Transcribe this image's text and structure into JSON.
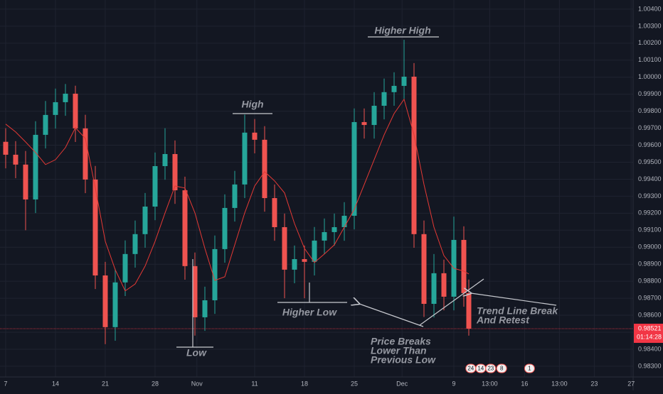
{
  "chart_data": {
    "type": "candlestick",
    "candles": {
      "x": [
        0,
        1,
        2,
        3,
        4,
        5,
        6,
        7,
        8,
        9,
        10,
        11,
        12,
        13,
        14,
        15,
        16,
        17,
        18,
        19,
        20,
        21,
        22,
        23,
        24,
        25,
        26,
        27,
        28,
        29,
        30,
        31,
        32,
        33,
        34,
        35,
        36,
        37,
        38,
        39,
        40,
        41,
        42,
        43,
        44,
        45,
        46,
        46.5
      ],
      "open": [
        0.9962,
        0.99544,
        0.99486,
        0.99281,
        0.99661,
        0.99778,
        0.99853,
        0.99903,
        0.99699,
        0.99398,
        0.98834,
        0.9853,
        0.98793,
        0.9896,
        0.99077,
        0.99239,
        0.99477,
        0.99548,
        0.99335,
        0.98889,
        0.98588,
        0.98688,
        0.98989,
        0.99231,
        0.99369,
        0.99674,
        0.99632,
        0.99289,
        0.99118,
        0.98868,
        0.9893,
        0.98914,
        0.99039,
        0.99089,
        0.99118,
        0.99185,
        0.99736,
        0.99719,
        0.99832,
        0.99912,
        0.99949,
        1.00003,
        0.99077,
        0.98667,
        0.98847,
        0.98709,
        0.99043,
        0.9873
      ],
      "high": [
        0.997,
        0.99624,
        0.99566,
        0.99741,
        0.9986,
        0.99933,
        0.9996,
        0.9995,
        0.99779,
        0.99478,
        0.98914,
        0.98873,
        0.9904,
        0.99157,
        0.99319,
        0.99557,
        0.997,
        0.99628,
        0.99415,
        0.98969,
        0.98768,
        0.99069,
        0.99311,
        0.99449,
        0.9978,
        0.99754,
        0.99712,
        0.99369,
        0.99198,
        0.9901,
        0.9901,
        0.99119,
        0.99169,
        0.99198,
        0.99265,
        0.99816,
        0.99816,
        0.99912,
        0.99992,
        1.00029,
        1.0022,
        1.00083,
        0.99157,
        0.9896,
        0.98927,
        0.9918,
        0.99123,
        0.9881
      ],
      "low": [
        0.99464,
        0.99406,
        0.991,
        0.99201,
        0.99581,
        0.99698,
        0.99773,
        0.99619,
        0.99318,
        0.98754,
        0.9843,
        0.9845,
        0.98713,
        0.9888,
        0.98997,
        0.99159,
        0.99397,
        0.99255,
        0.98809,
        0.9848,
        0.98508,
        0.98608,
        0.98909,
        0.99151,
        0.99289,
        0.99552,
        0.99209,
        0.99038,
        0.987,
        0.98788,
        0.987,
        0.98834,
        0.98959,
        0.99009,
        0.99038,
        0.99105,
        0.99639,
        0.99639,
        0.99752,
        0.99832,
        0.99869,
        0.98997,
        0.9859,
        0.98587,
        0.98629,
        0.98629,
        0.9865,
        0.9848
      ],
      "close": [
        0.99544,
        0.99486,
        0.99281,
        0.99661,
        0.99778,
        0.99853,
        0.99903,
        0.99699,
        0.99398,
        0.98834,
        0.9853,
        0.98793,
        0.9896,
        0.99077,
        0.99239,
        0.99477,
        0.99548,
        0.99335,
        0.98889,
        0.98588,
        0.98688,
        0.98989,
        0.99231,
        0.99369,
        0.99674,
        0.99632,
        0.99289,
        0.99118,
        0.98868,
        0.9893,
        0.98914,
        0.99039,
        0.99089,
        0.99118,
        0.99185,
        0.99736,
        0.99719,
        0.99832,
        0.99912,
        0.99949,
        1.00003,
        0.99077,
        0.98667,
        0.98847,
        0.98709,
        0.99043,
        0.9873,
        0.98521
      ],
      "up_color": "#26a69a",
      "down_color": "#ef5350"
    },
    "moving_average": {
      "color": "#e53935",
      "values": [
        0.99724,
        0.99678,
        0.99619,
        0.99557,
        0.99486,
        0.99515,
        0.99586,
        0.99703,
        0.9964,
        0.99348,
        0.99035,
        0.98868,
        0.98743,
        0.98784,
        0.98889,
        0.99035,
        0.99202,
        0.9936,
        0.99348,
        0.99202,
        0.98993,
        0.98805,
        0.98826,
        0.99014,
        0.99202,
        0.9936,
        0.99444,
        0.9939,
        0.99319,
        0.99139,
        0.98993,
        0.9891,
        0.9896,
        0.99014,
        0.99118,
        0.99223,
        0.99369,
        0.99515,
        0.99661,
        0.99786,
        0.9987,
        0.99661,
        0.99369,
        0.99118,
        0.98951,
        0.98876,
        0.98859,
        0.98843
      ]
    },
    "xlim": [
      -0.57,
      63
    ],
    "ylim": [
      0.98237,
      1.00454
    ],
    "xticks": [
      {
        "value": 0,
        "label": "7"
      },
      {
        "value": 5,
        "label": "14"
      },
      {
        "value": 10,
        "label": "21"
      },
      {
        "value": 15,
        "label": "28"
      },
      {
        "value": 19.2,
        "label": "Nov"
      },
      {
        "value": 25,
        "label": "11"
      },
      {
        "value": 30,
        "label": "18"
      },
      {
        "value": 35,
        "label": "25"
      },
      {
        "value": 39.8,
        "label": "Dec"
      },
      {
        "value": 45,
        "label": "9"
      },
      {
        "value": 48.6,
        "label": "13:00"
      },
      {
        "value": 52.1,
        "label": "16"
      },
      {
        "value": 55.6,
        "label": "13:00"
      },
      {
        "value": 59.1,
        "label": "23"
      },
      {
        "value": 62.8,
        "label": "27"
      }
    ],
    "yticks": [
      {
        "value": 0.983,
        "label": "0.98300"
      },
      {
        "value": 0.984,
        "label": "0.98400"
      },
      {
        "value": 0.985,
        "label": "0.98500"
      },
      {
        "value": 0.986,
        "label": "0.98600"
      },
      {
        "value": 0.987,
        "label": "0.98700"
      },
      {
        "value": 0.988,
        "label": "0.98800"
      },
      {
        "value": 0.989,
        "label": "0.98900"
      },
      {
        "value": 0.99,
        "label": "0.99000"
      },
      {
        "value": 0.991,
        "label": "0.99100"
      },
      {
        "value": 0.992,
        "label": "0.99200"
      },
      {
        "value": 0.993,
        "label": "0.99300"
      },
      {
        "value": 0.994,
        "label": "0.99400"
      },
      {
        "value": 0.995,
        "label": "0.99500"
      },
      {
        "value": 0.996,
        "label": "0.99600"
      },
      {
        "value": 0.997,
        "label": "0.99700"
      },
      {
        "value": 0.998,
        "label": "0.99800"
      },
      {
        "value": 0.999,
        "label": "0.99900"
      },
      {
        "value": 1.0,
        "label": "1.00000"
      },
      {
        "value": 1.001,
        "label": "1.00100"
      },
      {
        "value": 1.002,
        "label": "1.00200"
      },
      {
        "value": 1.003,
        "label": "1.00300"
      },
      {
        "value": 1.004,
        "label": "1.00400"
      }
    ],
    "grid": true,
    "price_marker": {
      "value": 0.98521,
      "label": "0.98521"
    },
    "countdown": "01:14:28",
    "annotations": [
      "Higher High",
      "High",
      "Low",
      "Higher Low",
      "Price Breaks",
      "Lower Than",
      "Previous Low",
      "Trend Line Break",
      "And Retest"
    ],
    "events": [
      {
        "x": 46.7,
        "label": "24"
      },
      {
        "x": 47.7,
        "label": "14"
      },
      {
        "x": 48.7,
        "label": "23"
      },
      {
        "x": 49.8,
        "label": "8"
      },
      {
        "x": 52.6,
        "label": "1"
      }
    ]
  }
}
